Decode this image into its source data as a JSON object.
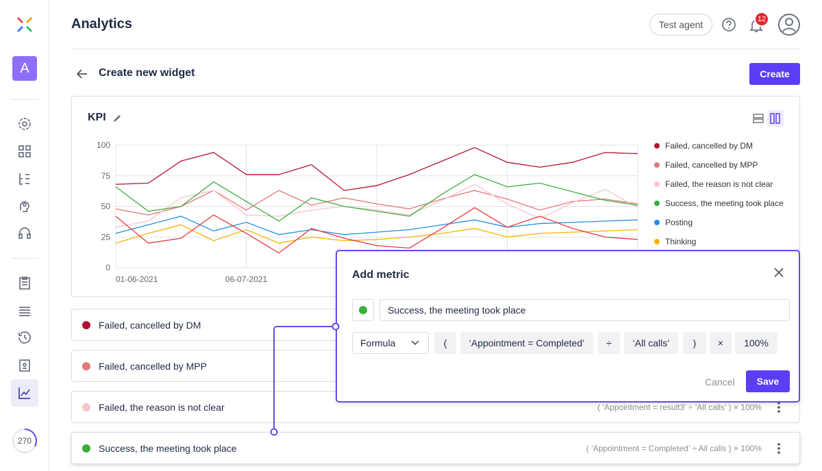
{
  "header": {
    "title": "Analytics",
    "agent": "Test agent",
    "notifications": "12"
  },
  "sidebar": {
    "workspace": "A",
    "counter": "270"
  },
  "page": {
    "title": "Create new widget",
    "create": "Create"
  },
  "widget": {
    "title": "KPI"
  },
  "chart_data": {
    "type": "line",
    "categories": [
      "01-06-2021",
      null,
      null,
      null,
      "06-07-2021",
      null,
      null,
      null,
      null,
      null,
      null,
      null,
      null,
      null,
      null,
      null,
      null
    ],
    "ylim": [
      0,
      100
    ],
    "yticks": [
      0,
      25,
      50,
      75,
      100
    ],
    "grid": true,
    "series": [
      {
        "name": "Failed, cancelled by DM",
        "color": "#b3122e",
        "values": [
          68,
          69,
          87,
          94,
          76,
          76,
          84,
          63,
          67,
          76,
          87,
          98,
          86,
          82,
          86,
          94,
          93
        ]
      },
      {
        "name": "Failed, cancelled by MPP",
        "color": "#e47777",
        "values": [
          48,
          43,
          50,
          63,
          47,
          63,
          51,
          57,
          52,
          48,
          56,
          63,
          56,
          47,
          54,
          56,
          52
        ]
      },
      {
        "name": "Failed, the reason is not clear",
        "color": "#f8c5cc",
        "values": [
          33,
          38,
          57,
          63,
          43,
          42,
          47,
          50,
          47,
          43,
          55,
          68,
          52,
          40,
          53,
          64,
          49
        ]
      },
      {
        "name": "Success, the meeting took place",
        "color": "#3cae3c",
        "values": [
          66,
          46,
          50,
          70,
          54,
          38,
          57,
          50,
          46,
          42,
          60,
          76,
          66,
          69,
          62,
          55,
          51
        ]
      },
      {
        "name": "Posting",
        "color": "#1e8fe1",
        "values": [
          28,
          35,
          42,
          30,
          37,
          27,
          31,
          27,
          29,
          31,
          35,
          39,
          33,
          36,
          37,
          38,
          39
        ]
      },
      {
        "name": "Thinking",
        "color": "#f4b400",
        "values": [
          20,
          28,
          35,
          22,
          31,
          20,
          25,
          22,
          23,
          25,
          28,
          32,
          25,
          28,
          29,
          30,
          31
        ]
      },
      {
        "color": "#e8383d",
        "values": [
          42,
          20,
          24,
          43,
          28,
          12,
          32,
          24,
          18,
          16,
          32,
          49,
          33,
          42,
          32,
          25,
          23
        ]
      }
    ]
  },
  "metrics": [
    {
      "name": "Failed, cancelled by DM",
      "color": "#b3122e"
    },
    {
      "name": "Failed, cancelled by MPP",
      "color": "#e47777"
    },
    {
      "name": "Failed, the reason is not clear",
      "color": "#f8c5cc",
      "formula": "( ‘Appointment = result3’ ÷ ‘All calls’ ) × 100%"
    },
    {
      "name": "Success, the meeting took place",
      "color": "#3cae3c",
      "formula": "( ‘Appointment = Completed’ ÷ All calls ) × 100%"
    }
  ],
  "modal": {
    "title": "Add metric",
    "color": "#3cae3c",
    "name": "Success, the meeting took place",
    "mode": "Formula",
    "tokens": [
      "(",
      "‘Appointment = Completed’",
      "÷",
      "‘All calls’",
      ")",
      "×",
      "100%"
    ],
    "cancel": "Cancel",
    "save": "Save"
  }
}
